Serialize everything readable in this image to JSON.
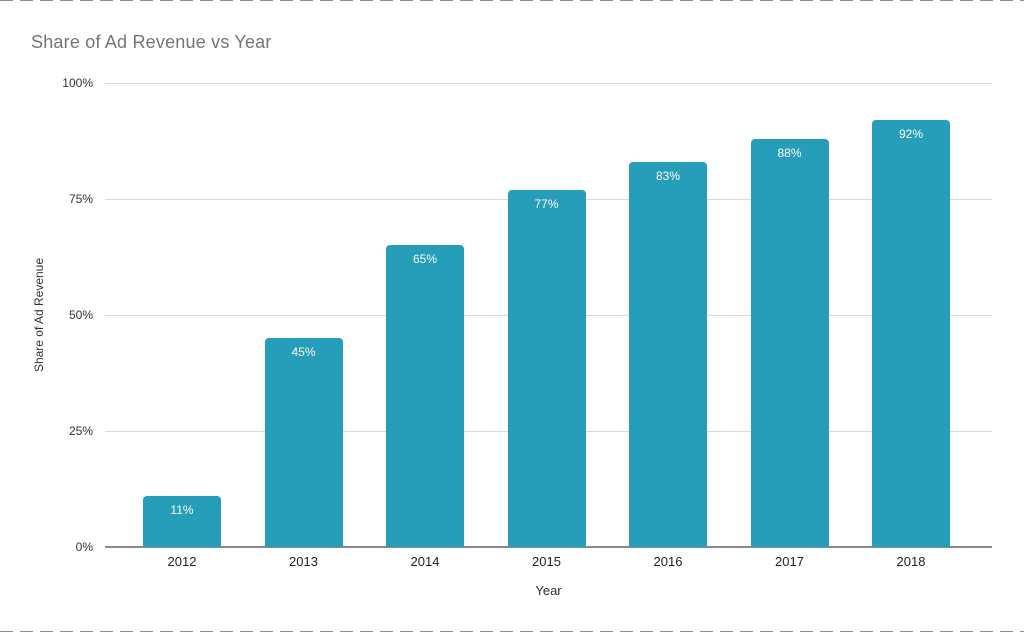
{
  "chart_data": {
    "type": "bar",
    "title": "Share of Ad Revenue vs Year",
    "xlabel": "Year",
    "ylabel": "Share of Ad Revenue",
    "categories": [
      "2012",
      "2013",
      "2014",
      "2015",
      "2016",
      "2017",
      "2018"
    ],
    "values": [
      11,
      45,
      65,
      77,
      83,
      88,
      92
    ],
    "value_labels": [
      "11%",
      "45%",
      "65%",
      "77%",
      "83%",
      "88%",
      "92%"
    ],
    "y_ticks": [
      0,
      25,
      50,
      75,
      100
    ],
    "y_tick_labels": [
      "0%",
      "25%",
      "50%",
      "75%",
      "100%"
    ],
    "ylim": [
      0,
      100
    ],
    "grid": true,
    "legend_position": "none",
    "bar_color": "#269EBA",
    "value_label_color": "#ffffff",
    "gridline_color": "#d9d9d9",
    "baseline_color": "#8a8a8a",
    "title_color": "#757575"
  }
}
